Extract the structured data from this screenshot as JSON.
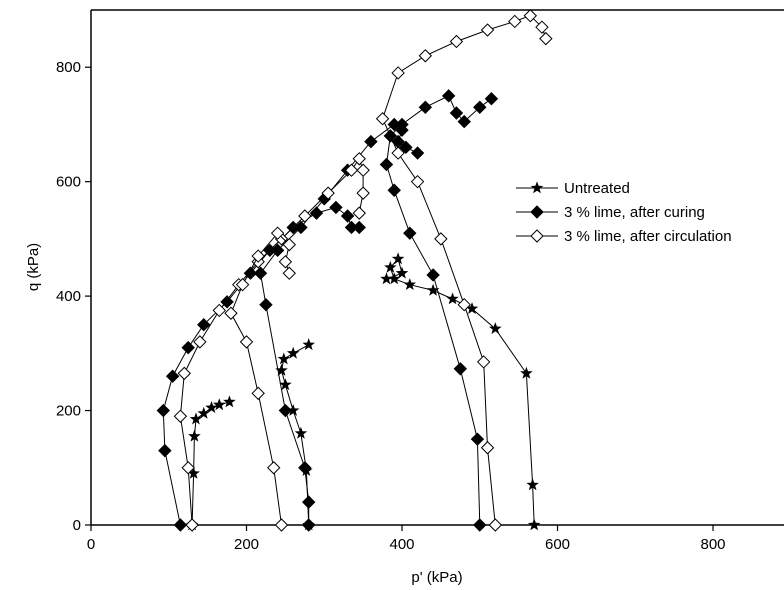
{
  "chart_data": {
    "type": "scatter",
    "xlabel": "p' (kPa)",
    "ylabel": "q (kPa)",
    "xlim": [
      0,
      890
    ],
    "ylim": [
      0,
      900
    ],
    "xticks": [
      0,
      200,
      400,
      600,
      800
    ],
    "yticks": [
      0,
      200,
      400,
      600,
      800
    ],
    "legend": "right",
    "series": [
      {
        "name": "Untreated",
        "marker": "star",
        "color": "#000000",
        "paths": [
          {
            "x": [
              130,
              132,
              133,
              135,
              145,
              155,
              165,
              178
            ],
            "y": [
              0,
              90,
              155,
              185,
              195,
              205,
              210,
              215
            ]
          },
          {
            "x": [
              280,
              277,
              270,
              260,
              250,
              245,
              248,
              260,
              280
            ],
            "y": [
              0,
              95,
              160,
              200,
              245,
              270,
              290,
              300,
              315
            ]
          },
          {
            "x": [
              570,
              568,
              560,
              520,
              490,
              465,
              440,
              410,
              390,
              385,
              395,
              400,
              380
            ],
            "y": [
              0,
              70,
              265,
              343,
              378,
              395,
              410,
              420,
              430,
              450,
              465,
              440,
              430
            ]
          }
        ]
      },
      {
        "name": "3 % lime, after curing",
        "marker": "diamond-filled",
        "color": "#000000",
        "paths": [
          {
            "x": [
              115,
              95,
              93,
              105,
              125,
              145,
              175,
              205,
              230,
              260,
              290,
              315,
              330,
              335,
              345
            ],
            "y": [
              0,
              130,
              200,
              260,
              310,
              350,
              390,
              440,
              480,
              520,
              545,
              555,
              540,
              520,
              520
            ]
          },
          {
            "x": [
              280,
              280,
              275,
              250,
              225,
              218,
              240,
              270,
              300,
              330,
              360,
              390,
              400,
              395,
              405,
              420
            ],
            "y": [
              0,
              40,
              100,
              200,
              385,
              440,
              480,
              520,
              570,
              620,
              670,
              700,
              690,
              670,
              660,
              650
            ]
          },
          {
            "x": [
              500,
              497,
              475,
              440,
              410,
              390,
              380,
              385,
              400,
              430,
              460,
              470,
              480,
              500,
              515
            ],
            "y": [
              0,
              150,
              273,
              437,
              510,
              585,
              630,
              680,
              700,
              730,
              750,
              720,
              705,
              730,
              745
            ]
          }
        ]
      },
      {
        "name": "3 % lime, after circulation",
        "marker": "diamond-open",
        "color": "#000000",
        "paths": [
          {
            "x": [
              130,
              125,
              115,
              120,
              140,
              165,
              190,
              215,
              245,
              275,
              305,
              335,
              345,
              350,
              350,
              345
            ],
            "y": [
              0,
              100,
              190,
              265,
              320,
              375,
              420,
              460,
              500,
              540,
              580,
              620,
              640,
              620,
              580,
              545
            ]
          },
          {
            "x": [
              245,
              235,
              215,
              200,
              180,
              195,
              215,
              240,
              255,
              250,
              255
            ],
            "y": [
              0,
              100,
              230,
              320,
              370,
              420,
              470,
              510,
              490,
              460,
              440
            ]
          },
          {
            "x": [
              520,
              510,
              505,
              480,
              450,
              420,
              395,
              375,
              395,
              430,
              470,
              510,
              545,
              565,
              580,
              585
            ],
            "y": [
              0,
              135,
              285,
              385,
              500,
              600,
              650,
              710,
              790,
              820,
              845,
              865,
              880,
              890,
              870,
              850
            ]
          }
        ]
      }
    ]
  }
}
